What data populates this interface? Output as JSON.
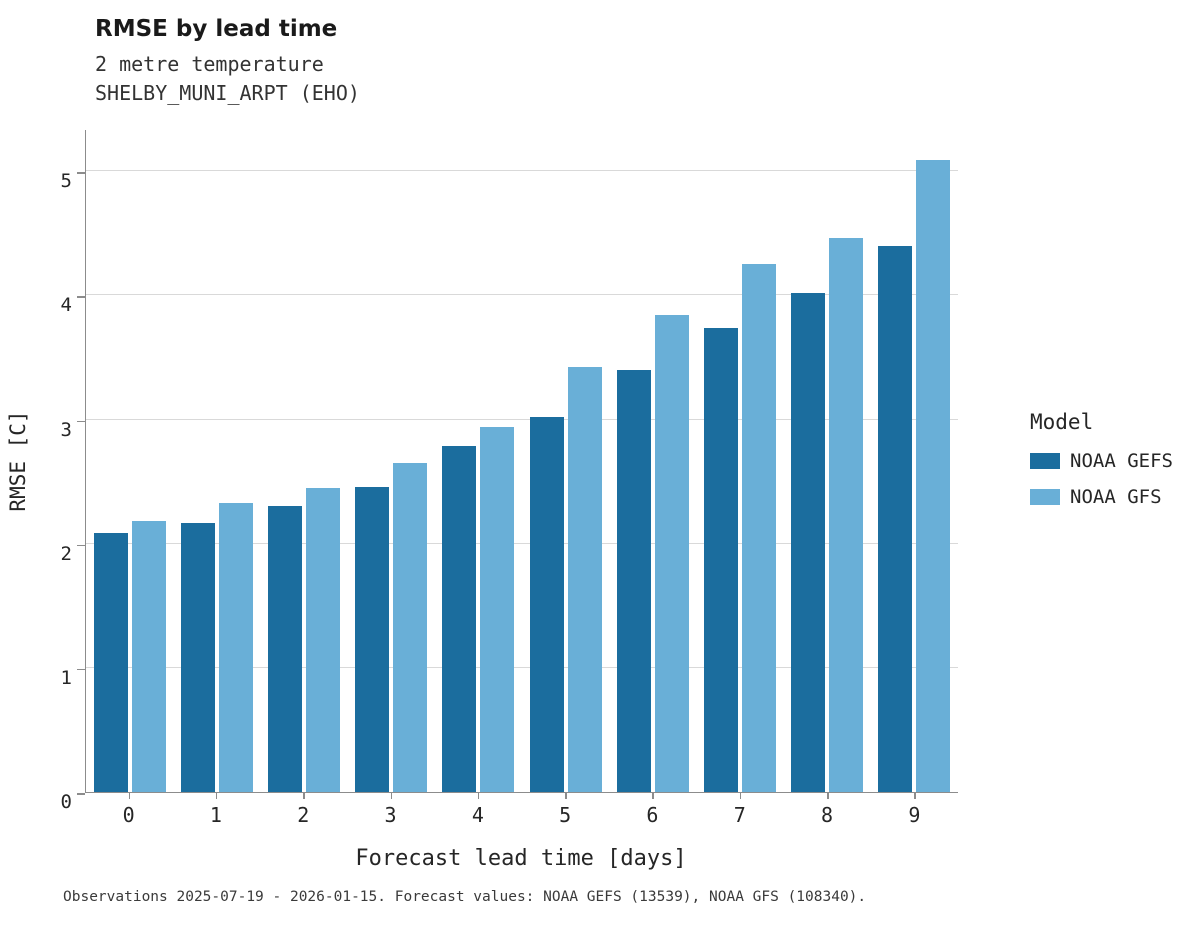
{
  "header": {
    "title": "RMSE by lead time",
    "subtitle": "2 metre temperature",
    "station": "SHELBY_MUNI_ARPT (EHO)"
  },
  "chart_data": {
    "type": "bar",
    "title": "RMSE by lead time",
    "subtitle": "2 metre temperature",
    "station": "SHELBY_MUNI_ARPT (EHO)",
    "categories": [
      "0",
      "1",
      "2",
      "3",
      "4",
      "5",
      "6",
      "7",
      "8",
      "9"
    ],
    "series": [
      {
        "name": "NOAA GEFS",
        "color": "#1b6d9e",
        "values": [
          2.09,
          2.17,
          2.3,
          2.46,
          2.79,
          3.02,
          3.4,
          3.74,
          4.02,
          4.4
        ]
      },
      {
        "name": "NOAA GFS",
        "color": "#69afd7",
        "values": [
          2.18,
          2.33,
          2.45,
          2.65,
          2.94,
          3.42,
          3.84,
          4.25,
          4.46,
          5.09
        ]
      }
    ],
    "xlabel": "Forecast lead time [days]",
    "ylabel": "RMSE [C]",
    "ylim": [
      0,
      5.34
    ],
    "yticks": [
      0,
      1,
      2,
      3,
      4,
      5
    ],
    "grid": "horizontal",
    "legend_title": "Model",
    "legend_position": "right"
  },
  "footer": {
    "caption": "Observations 2025-07-19 - 2026-01-15. Forecast values: NOAA GEFS (13539), NOAA GFS (108340)."
  }
}
